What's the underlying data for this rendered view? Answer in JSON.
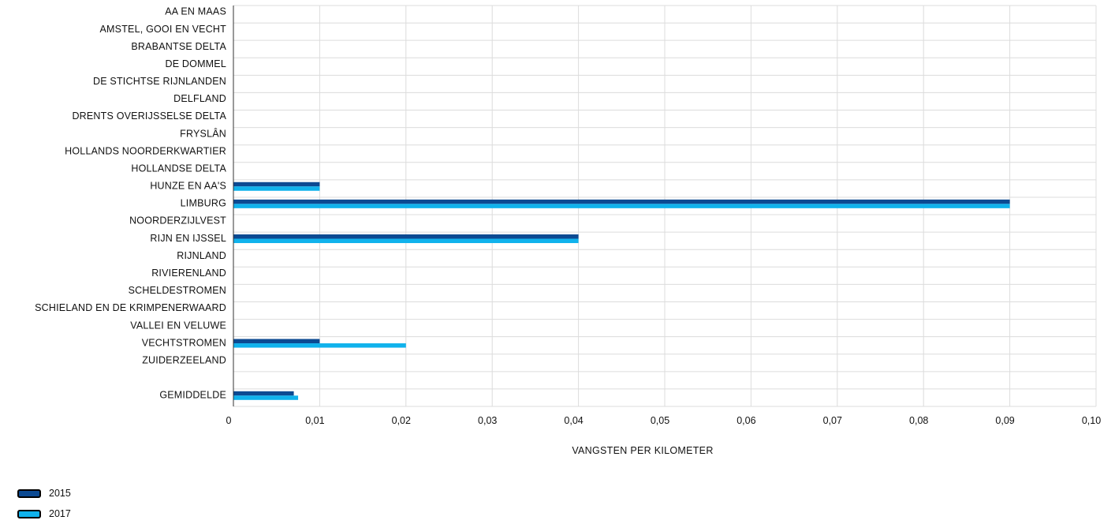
{
  "chart_data": {
    "type": "bar",
    "orientation": "horizontal",
    "title": "",
    "xlabel": "VANGSTEN PER KILOMETER",
    "ylabel": "",
    "xlim": [
      0,
      0.1
    ],
    "xticks": [
      {
        "value": 0,
        "label": "0"
      },
      {
        "value": 0.01,
        "label": "0,01"
      },
      {
        "value": 0.02,
        "label": "0,02"
      },
      {
        "value": 0.03,
        "label": "0,03"
      },
      {
        "value": 0.04,
        "label": "0,04"
      },
      {
        "value": 0.05,
        "label": "0,05"
      },
      {
        "value": 0.06,
        "label": "0,06"
      },
      {
        "value": 0.07,
        "label": "0,07"
      },
      {
        "value": 0.08,
        "label": "0,08"
      },
      {
        "value": 0.09,
        "label": "0,09"
      },
      {
        "value": 0.1,
        "label": "0,10"
      }
    ],
    "grid": true,
    "legend_position": "bottom-left",
    "categories": [
      "AA EN MAAS",
      "AMSTEL, GOOI EN VECHT",
      "BRABANTSE DELTA",
      "DE DOMMEL",
      "DE STICHTSE RIJNLANDEN",
      "DELFLAND",
      "DRENTS OVERIJSSELSE DELTA",
      "FRYSLÂN",
      "HOLLANDS NOORDERKWARTIER",
      "HOLLANDSE DELTA",
      "HUNZE EN AA'S",
      "LIMBURG",
      "NOORDERZIJLVEST",
      "RIJN EN IJSSEL",
      "RIJNLAND",
      "RIVIERENLAND",
      "SCHELDESTROMEN",
      "SCHIELAND EN DE KRIMPENERWAARD",
      "VALLEI EN VELUWE",
      "VECHTSTROMEN",
      "ZUIDERZEELAND",
      "",
      "GEMIDDELDE"
    ],
    "series": [
      {
        "name": "2015",
        "color": "#0c4a92",
        "values": [
          0,
          0,
          0,
          0,
          0,
          0,
          0,
          0,
          0,
          0,
          0.01,
          0.09,
          0,
          0.04,
          0,
          0,
          0,
          0,
          0,
          0.01,
          0,
          null,
          0.007
        ]
      },
      {
        "name": "2017",
        "color": "#10b2ec",
        "values": [
          0,
          0,
          0,
          0,
          0,
          0,
          0,
          0,
          0,
          0,
          0.01,
          0.09,
          0,
          0.04,
          0,
          0,
          0,
          0,
          0,
          0.02,
          0,
          null,
          0.0075
        ]
      }
    ]
  }
}
